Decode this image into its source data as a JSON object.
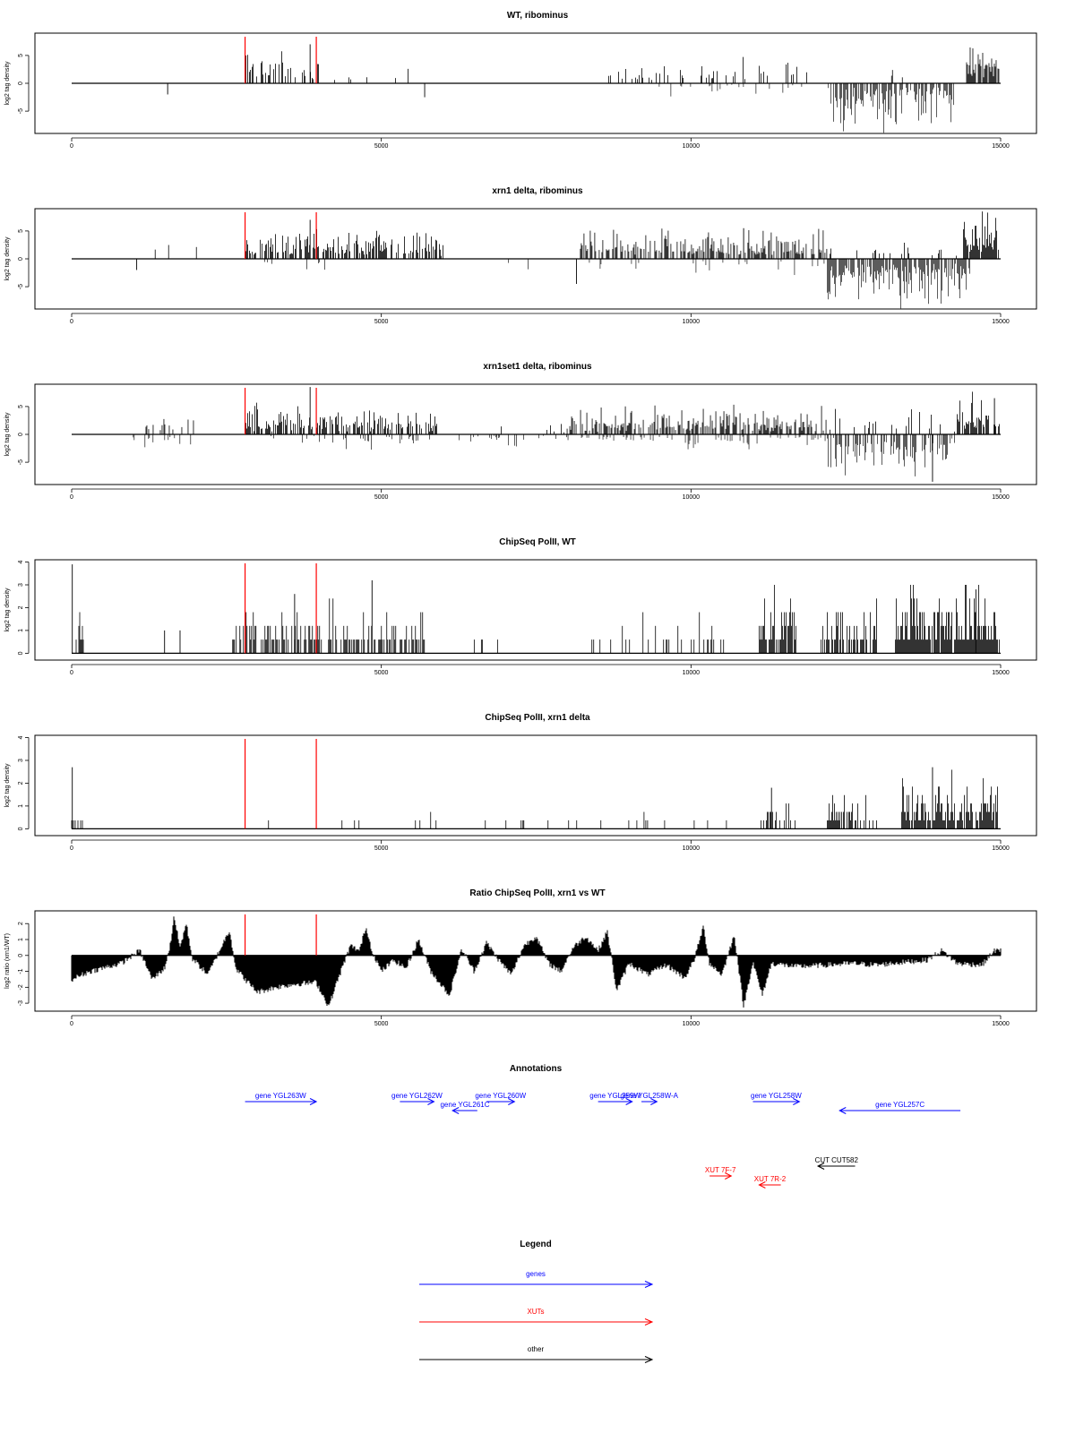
{
  "chart_data": {
    "type": "multi-track genome browser",
    "x_range": [
      0,
      15000
    ],
    "x_ticks": [
      0,
      5000,
      10000,
      15000
    ],
    "markers": {
      "color": "#ff0000",
      "x": [
        2800,
        3950
      ]
    },
    "tracks": [
      {
        "title": "WT, ribominus",
        "ylabel": "log2 tag density",
        "ylim": [
          -9,
          9
        ],
        "y_ticks": [
          -5,
          0,
          5
        ],
        "tick_labels": [
          "-5",
          "0",
          "5"
        ],
        "regions": [
          {
            "x0": 2800,
            "x1": 4000,
            "amp": 3.5,
            "dir": 1,
            "density": 0.35
          },
          {
            "x0": 4000,
            "x1": 5600,
            "amp": 1.5,
            "dir": 1,
            "density": 0.05
          },
          {
            "x0": 8600,
            "x1": 11900,
            "amp": 2.5,
            "dir": 1,
            "density": 0.18
          },
          {
            "x0": 9400,
            "x1": 11800,
            "amp": 1.5,
            "dir": -1,
            "density": 0.1
          },
          {
            "x0": 12200,
            "x1": 14300,
            "amp": 4.5,
            "dir": -1,
            "density": 0.65
          },
          {
            "x0": 12400,
            "x1": 13600,
            "amp": 2.0,
            "dir": 1,
            "density": 0.05
          },
          {
            "x0": 14450,
            "x1": 14980,
            "amp": 4.5,
            "dir": 1,
            "density": 0.85
          }
        ],
        "spikes": [
          {
            "x": 1550,
            "y": -2
          },
          {
            "x": 5700,
            "y": -2.5
          },
          {
            "x": 3850,
            "y": 7
          }
        ]
      },
      {
        "title": "xrn1 delta, ribominus",
        "ylabel": "log2 tag density",
        "ylim": [
          -9,
          9
        ],
        "y_ticks": [
          -5,
          0,
          5
        ],
        "tick_labels": [
          "-5",
          "0",
          "5"
        ],
        "regions": [
          {
            "x0": 900,
            "x1": 2200,
            "amp": 1.5,
            "dir": 1,
            "density": 0.03
          },
          {
            "x0": 2800,
            "x1": 6000,
            "amp": 3.0,
            "dir": 1,
            "density": 0.55
          },
          {
            "x0": 3000,
            "x1": 4500,
            "amp": 1.5,
            "dir": -1,
            "density": 0.05
          },
          {
            "x0": 6200,
            "x1": 8200,
            "amp": 1.2,
            "dir": -1,
            "density": 0.05
          },
          {
            "x0": 8200,
            "x1": 12200,
            "amp": 3.0,
            "dir": 1,
            "density": 0.55
          },
          {
            "x0": 8200,
            "x1": 12200,
            "amp": 1.5,
            "dir": -1,
            "density": 0.08
          },
          {
            "x0": 12200,
            "x1": 14500,
            "amp": 5.0,
            "dir": -1,
            "density": 0.8
          },
          {
            "x0": 12200,
            "x1": 14400,
            "amp": 2.0,
            "dir": 1,
            "density": 0.1
          },
          {
            "x0": 14400,
            "x1": 14980,
            "amp": 5.5,
            "dir": 1,
            "density": 0.9
          }
        ],
        "spikes": [
          {
            "x": 1050,
            "y": -2
          },
          {
            "x": 8150,
            "y": -4.5
          },
          {
            "x": 3850,
            "y": 7
          },
          {
            "x": 10850,
            "y": 5.5
          }
        ]
      },
      {
        "title": "xrn1set1 delta, ribominus",
        "ylabel": "log2 tag density",
        "ylim": [
          -9,
          9
        ],
        "y_ticks": [
          -5,
          0,
          5
        ],
        "tick_labels": [
          "-5",
          "0",
          "5"
        ],
        "regions": [
          {
            "x0": 850,
            "x1": 2000,
            "amp": 1.5,
            "dir": -1,
            "density": 0.2
          },
          {
            "x0": 1200,
            "x1": 2100,
            "amp": 2.5,
            "dir": 1,
            "density": 0.12
          },
          {
            "x0": 2800,
            "x1": 5900,
            "amp": 3.0,
            "dir": 1,
            "density": 0.6
          },
          {
            "x0": 3000,
            "x1": 5900,
            "amp": 1.5,
            "dir": -1,
            "density": 0.12
          },
          {
            "x0": 6200,
            "x1": 8000,
            "amp": 1.2,
            "dir": -1,
            "density": 0.2
          },
          {
            "x0": 6400,
            "x1": 8000,
            "amp": 1.2,
            "dir": 1,
            "density": 0.08
          },
          {
            "x0": 8000,
            "x1": 12200,
            "amp": 3.0,
            "dir": 1,
            "density": 0.6
          },
          {
            "x0": 8000,
            "x1": 12200,
            "amp": 1.5,
            "dir": -1,
            "density": 0.2
          },
          {
            "x0": 12200,
            "x1": 14300,
            "amp": 4.0,
            "dir": -1,
            "density": 0.55
          },
          {
            "x0": 12200,
            "x1": 14300,
            "amp": 2.5,
            "dir": 1,
            "density": 0.18
          },
          {
            "x0": 14300,
            "x1": 14980,
            "amp": 5.0,
            "dir": 1,
            "density": 0.85
          }
        ],
        "spikes": [
          {
            "x": 3850,
            "y": 8.5
          },
          {
            "x": 13900,
            "y": -8.5
          },
          {
            "x": 14900,
            "y": 6.5
          }
        ]
      },
      {
        "title": "ChipSeq PolII, WT",
        "ylabel": "log2 tag density",
        "ylim": [
          -0.3,
          4.1
        ],
        "y_ticks": [
          0,
          1,
          2,
          3,
          4
        ],
        "tick_labels": [
          "0",
          "1",
          "2",
          "3",
          "4"
        ],
        "regions": [
          {
            "x0": 0,
            "x1": 200,
            "amp": 1.5,
            "dir": 1,
            "density": 0.6,
            "quant": 0.6
          },
          {
            "x0": 2600,
            "x1": 5700,
            "amp": 1.2,
            "dir": 1,
            "density": 0.55,
            "quant": 0.6
          },
          {
            "x0": 6500,
            "x1": 7000,
            "amp": 0.8,
            "dir": 1,
            "density": 0.12,
            "quant": 0.6
          },
          {
            "x0": 8400,
            "x1": 10700,
            "amp": 1.0,
            "dir": 1,
            "density": 0.18,
            "quant": 0.6
          },
          {
            "x0": 11100,
            "x1": 11700,
            "amp": 1.6,
            "dir": 1,
            "density": 0.8,
            "quant": 0.6
          },
          {
            "x0": 12100,
            "x1": 13000,
            "amp": 1.4,
            "dir": 1,
            "density": 0.65,
            "quant": 0.6
          },
          {
            "x0": 13300,
            "x1": 14980,
            "amp": 1.6,
            "dir": 1,
            "density": 0.9,
            "quant": 0.6
          }
        ],
        "spikes": [
          {
            "x": 10,
            "y": 3.9
          },
          {
            "x": 1500,
            "y": 1.0
          },
          {
            "x": 1750,
            "y": 1.0
          },
          {
            "x": 4850,
            "y": 3.2
          },
          {
            "x": 14600,
            "y": 2.8
          },
          {
            "x": 3600,
            "y": 2.6
          }
        ]
      },
      {
        "title": "ChipSeq PolII, xrn1 delta",
        "ylabel": "log2 tag density",
        "ylim": [
          -0.3,
          4.1
        ],
        "y_ticks": [
          0,
          1,
          2,
          3,
          4
        ],
        "tick_labels": [
          "0",
          "1",
          "2",
          "3",
          "4"
        ],
        "regions": [
          {
            "x0": 0,
            "x1": 200,
            "amp": 0.8,
            "dir": 1,
            "density": 0.3,
            "quant": 0.37
          },
          {
            "x0": 2600,
            "x1": 8800,
            "amp": 0.5,
            "dir": 1,
            "density": 0.05,
            "quant": 0.37
          },
          {
            "x0": 8200,
            "x1": 10600,
            "amp": 0.5,
            "dir": 1,
            "density": 0.05,
            "quant": 0.37
          },
          {
            "x0": 11100,
            "x1": 11700,
            "amp": 1.0,
            "dir": 1,
            "density": 0.5,
            "quant": 0.37
          },
          {
            "x0": 12200,
            "x1": 13000,
            "amp": 1.0,
            "dir": 1,
            "density": 0.55,
            "quant": 0.37
          },
          {
            "x0": 13400,
            "x1": 14980,
            "amp": 1.3,
            "dir": 1,
            "density": 0.9,
            "quant": 0.37
          }
        ],
        "spikes": [
          {
            "x": 10,
            "y": 2.7
          },
          {
            "x": 13900,
            "y": 2.7
          },
          {
            "x": 11300,
            "y": 1.8
          }
        ]
      },
      {
        "title": "Ratio ChipSeq PolII, xrn1 vs WT",
        "ylabel": "log2 ratio (xrn1/WT)",
        "ylim": [
          -3.5,
          2.8
        ],
        "y_ticks": [
          -3,
          -2,
          -1,
          0,
          1,
          2
        ],
        "tick_labels": [
          "-3",
          "-2",
          "-1",
          "0",
          "1",
          "2"
        ],
        "profile": [
          {
            "x": 0,
            "y": -1.5
          },
          {
            "x": 300,
            "y": -1.0
          },
          {
            "x": 800,
            "y": -0.5
          },
          {
            "x": 1100,
            "y": 0.3
          },
          {
            "x": 1300,
            "y": -1.5
          },
          {
            "x": 1500,
            "y": -0.8
          },
          {
            "x": 1600,
            "y": 0.8
          },
          {
            "x": 1650,
            "y": 2.5
          },
          {
            "x": 1750,
            "y": 0.5
          },
          {
            "x": 1850,
            "y": 2.0
          },
          {
            "x": 1950,
            "y": -0.2
          },
          {
            "x": 2200,
            "y": -1.2
          },
          {
            "x": 2550,
            "y": 1.6
          },
          {
            "x": 2650,
            "y": -0.8
          },
          {
            "x": 2800,
            "y": -1.5
          },
          {
            "x": 3000,
            "y": -2.3
          },
          {
            "x": 3300,
            "y": -2.0
          },
          {
            "x": 3600,
            "y": -1.8
          },
          {
            "x": 3950,
            "y": -1.7
          },
          {
            "x": 4150,
            "y": -3.2
          },
          {
            "x": 4300,
            "y": -1.5
          },
          {
            "x": 4500,
            "y": 0.6
          },
          {
            "x": 4650,
            "y": 0.3
          },
          {
            "x": 4750,
            "y": 1.8
          },
          {
            "x": 4850,
            "y": 0.3
          },
          {
            "x": 5000,
            "y": -1.0
          },
          {
            "x": 5200,
            "y": -0.3
          },
          {
            "x": 5400,
            "y": -0.8
          },
          {
            "x": 5600,
            "y": 1.0
          },
          {
            "x": 5800,
            "y": -1.0
          },
          {
            "x": 6100,
            "y": -2.5
          },
          {
            "x": 6300,
            "y": 0.4
          },
          {
            "x": 6500,
            "y": -1.0
          },
          {
            "x": 6700,
            "y": 0.8
          },
          {
            "x": 6900,
            "y": -0.3
          },
          {
            "x": 7100,
            "y": -1.2
          },
          {
            "x": 7300,
            "y": 0.6
          },
          {
            "x": 7500,
            "y": 1.2
          },
          {
            "x": 7700,
            "y": -0.5
          },
          {
            "x": 7900,
            "y": -1.0
          },
          {
            "x": 8100,
            "y": 0.5
          },
          {
            "x": 8300,
            "y": 1.2
          },
          {
            "x": 8500,
            "y": 0.3
          },
          {
            "x": 8650,
            "y": 1.5
          },
          {
            "x": 8800,
            "y": -2.2
          },
          {
            "x": 9000,
            "y": -0.5
          },
          {
            "x": 9300,
            "y": -1.2
          },
          {
            "x": 9600,
            "y": -0.6
          },
          {
            "x": 9900,
            "y": -1.4
          },
          {
            "x": 10050,
            "y": -0.3
          },
          {
            "x": 10200,
            "y": 1.8
          },
          {
            "x": 10300,
            "y": -0.5
          },
          {
            "x": 10500,
            "y": -1.2
          },
          {
            "x": 10700,
            "y": 1.3
          },
          {
            "x": 10850,
            "y": -3.2
          },
          {
            "x": 11000,
            "y": -0.4
          },
          {
            "x": 11150,
            "y": -2.5
          },
          {
            "x": 11300,
            "y": -0.5
          },
          {
            "x": 11700,
            "y": -0.7
          },
          {
            "x": 12200,
            "y": -0.6
          },
          {
            "x": 12600,
            "y": -0.5
          },
          {
            "x": 13000,
            "y": -0.6
          },
          {
            "x": 13500,
            "y": -0.4
          },
          {
            "x": 13800,
            "y": -0.3
          },
          {
            "x": 14050,
            "y": 0.3
          },
          {
            "x": 14300,
            "y": -0.5
          },
          {
            "x": 14700,
            "y": -0.6
          },
          {
            "x": 14900,
            "y": 0.3
          },
          {
            "x": 15000,
            "y": 0.3
          }
        ]
      }
    ],
    "annotations": {
      "title": "Annotations",
      "features": [
        {
          "label": "gene YGL263W",
          "x0": 2800,
          "x1": 3950,
          "strand": "+",
          "color": "#0000ff",
          "row": 0
        },
        {
          "label": "gene YGL262W",
          "x0": 5300,
          "x1": 5850,
          "strand": "+",
          "color": "#0000ff",
          "row": 0
        },
        {
          "label": "gene YGL261C",
          "x0": 6150,
          "x1": 6550,
          "strand": "-",
          "color": "#0000ff",
          "row": 1
        },
        {
          "label": "gene YGL260W",
          "x0": 6700,
          "x1": 7150,
          "strand": "+",
          "color": "#0000ff",
          "row": 0
        },
        {
          "label": "gene YGL259W",
          "x0": 8500,
          "x1": 9050,
          "strand": "+",
          "color": "#0000ff",
          "row": 0
        },
        {
          "label": "gene YGL258W-A",
          "x0": 9200,
          "x1": 9450,
          "strand": "+",
          "color": "#0000ff",
          "row": 0
        },
        {
          "label": "gene YGL258W",
          "x0": 11000,
          "x1": 11750,
          "strand": "+",
          "color": "#0000ff",
          "row": 0
        },
        {
          "label": "gene YGL257C",
          "x0": 12400,
          "x1": 14350,
          "strand": "-",
          "color": "#0000ff",
          "row": 1
        },
        {
          "label": "CUT CUT582",
          "x0": 12050,
          "x1": 12650,
          "strand": "-",
          "color": "#000000",
          "row": 4
        },
        {
          "label": "XUT 7F-7",
          "x0": 10300,
          "x1": 10650,
          "strand": "+",
          "color": "#ff0000",
          "row": 5
        },
        {
          "label": "XUT 7R-2",
          "x0": 11100,
          "x1": 11450,
          "strand": "-",
          "color": "#ff0000",
          "row": 6
        }
      ]
    },
    "legend": {
      "title": "Legend",
      "items": [
        {
          "label": "genes",
          "color": "#0000ff"
        },
        {
          "label": "XUTs",
          "color": "#ff0000"
        },
        {
          "label": "other",
          "color": "#000000"
        }
      ]
    }
  }
}
